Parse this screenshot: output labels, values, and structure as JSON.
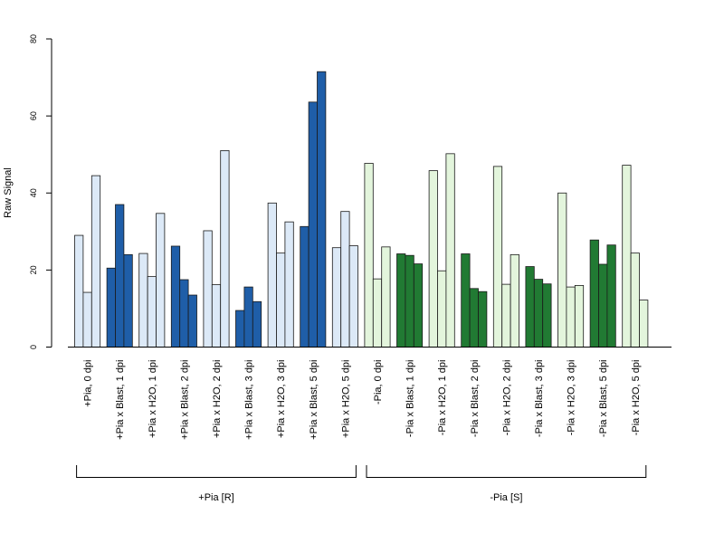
{
  "chart_data": {
    "type": "bar",
    "ylabel": "Raw Signal",
    "ylim": [
      0,
      80
    ],
    "yticks": [
      0,
      20,
      40,
      60,
      80
    ],
    "grid": false,
    "bars_per_category": 3,
    "colors": {
      "light_blue": "#dce9f7",
      "dark_blue": "#1f5ea8",
      "light_green": "#e3f5dc",
      "dark_green": "#217a33"
    },
    "categories": [
      {
        "label": "+Pia, 0 dpi",
        "values": [
          29,
          14.2,
          44.5
        ],
        "color": "light_blue"
      },
      {
        "label": "+Pia x Blast, 1 dpi",
        "values": [
          20.5,
          37,
          24
        ],
        "color": "dark_blue"
      },
      {
        "label": "+Pia x H2O, 1 dpi",
        "values": [
          24.3,
          18.3,
          34.7
        ],
        "color": "light_blue"
      },
      {
        "label": "+Pia x Blast, 2 dpi",
        "values": [
          26.2,
          17.5,
          13.5
        ],
        "color": "dark_blue"
      },
      {
        "label": "+Pia x H2O, 2 dpi",
        "values": [
          30.2,
          16.2,
          51
        ],
        "color": "light_blue"
      },
      {
        "label": "+Pia x Blast, 3 dpi",
        "values": [
          9.5,
          15.6,
          11.8
        ],
        "color": "dark_blue"
      },
      {
        "label": "+Pia x H2O, 3 dpi",
        "values": [
          37.4,
          24.4,
          32.5
        ],
        "color": "light_blue"
      },
      {
        "label": "+Pia x Blast, 5 dpi",
        "values": [
          31.3,
          63.6,
          71.5
        ],
        "color": "dark_blue"
      },
      {
        "label": "+Pia x H2O, 5 dpi",
        "values": [
          25.8,
          35.2,
          26.3
        ],
        "color": "light_blue"
      },
      {
        "label": "-Pia, 0 dpi",
        "values": [
          47.7,
          17.7,
          26
        ],
        "color": "light_green"
      },
      {
        "label": "-Pia x Blast, 1 dpi",
        "values": [
          24.2,
          23.8,
          21.6
        ],
        "color": "dark_green"
      },
      {
        "label": "-Pia x H2O, 1 dpi",
        "values": [
          45.8,
          19.8,
          50.2
        ],
        "color": "light_green"
      },
      {
        "label": "-Pia x Blast, 2 dpi",
        "values": [
          24.2,
          15.2,
          14.4
        ],
        "color": "dark_green"
      },
      {
        "label": "-Pia x H2O, 2 dpi",
        "values": [
          46.9,
          16.3,
          24
        ],
        "color": "light_green"
      },
      {
        "label": "-Pia x Blast, 3 dpi",
        "values": [
          20.9,
          17.6,
          16.4
        ],
        "color": "dark_green"
      },
      {
        "label": "-Pia x H2O, 3 dpi",
        "values": [
          40,
          15.6,
          16
        ],
        "color": "light_green"
      },
      {
        "label": "-Pia x Blast, 5 dpi",
        "values": [
          27.8,
          21.5,
          26.5
        ],
        "color": "dark_green"
      },
      {
        "label": "-Pia x H2O, 5 dpi",
        "values": [
          47.2,
          24.4,
          12.2
        ],
        "color": "light_green"
      }
    ],
    "groups": [
      {
        "label": "+Pia [R]",
        "first_category": 0,
        "last_category": 8
      },
      {
        "label": "-Pia [S]",
        "first_category": 9,
        "last_category": 17
      }
    ]
  }
}
